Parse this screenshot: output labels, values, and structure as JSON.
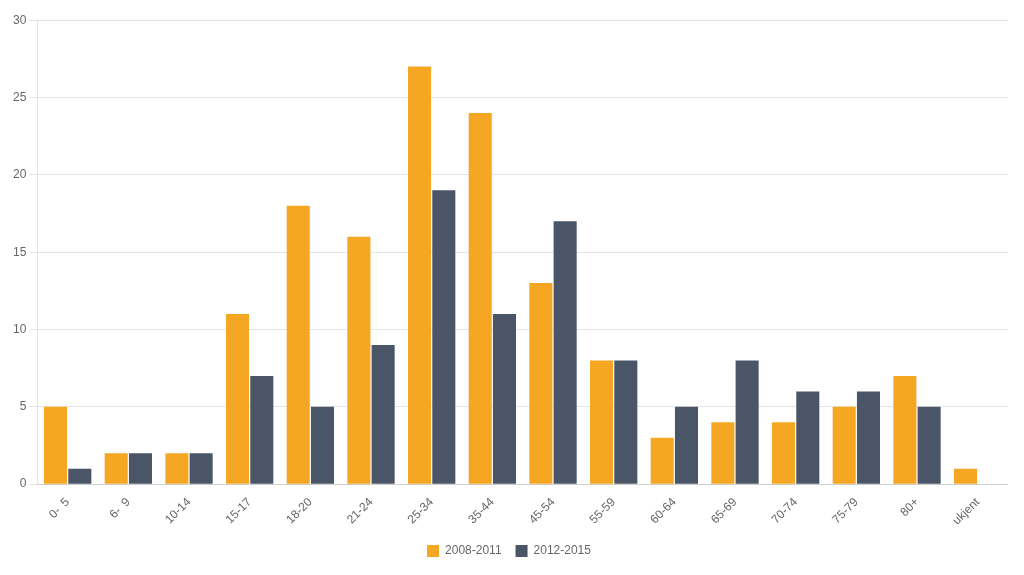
{
  "chart_data": {
    "type": "bar",
    "categories": [
      "0-  5",
      "6-  9",
      "10-14",
      "15-17",
      "18-20",
      "21-24",
      "25-34",
      "35-44",
      "45-54",
      "55-59",
      "60-64",
      "65-69",
      "70-74",
      "75-79",
      "80+",
      "ukjent"
    ],
    "series": [
      {
        "name": "2008-2011",
        "color": "#f5a623",
        "values": [
          5,
          2,
          2,
          11,
          18,
          16,
          27,
          24,
          13,
          8,
          3,
          4,
          4,
          5,
          7,
          1
        ]
      },
      {
        "name": "2012-2015",
        "color": "#4a5568",
        "values": [
          1,
          2,
          2,
          7,
          5,
          9,
          19,
          11,
          17,
          8,
          5,
          8,
          6,
          6,
          5,
          0
        ]
      }
    ],
    "ylim": [
      0,
      30
    ],
    "yticks": [
      0,
      5,
      10,
      15,
      20,
      25,
      30
    ],
    "grid": true,
    "legend": "bottom"
  }
}
